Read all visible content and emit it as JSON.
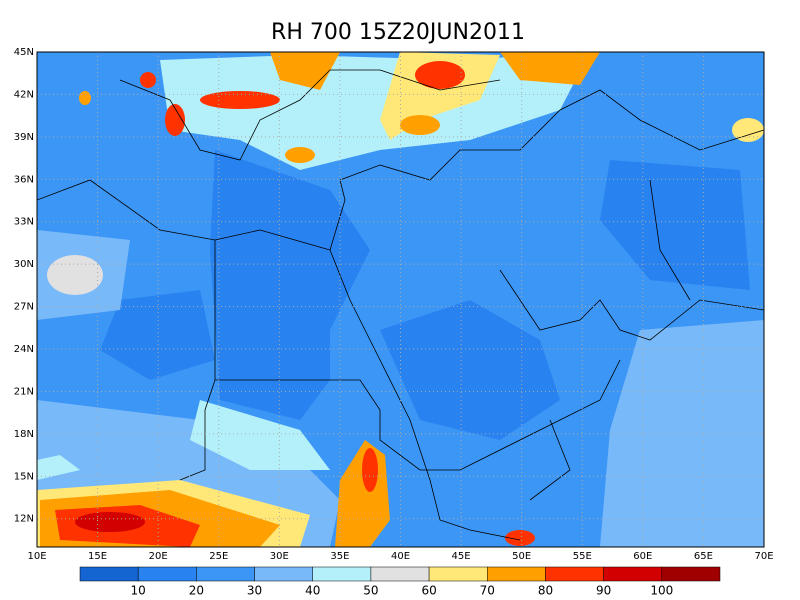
{
  "title": "RH 700 15Z20JUN2011",
  "lat_labels": [
    "45N",
    "42N",
    "39N",
    "36N",
    "33N",
    "30N",
    "27N",
    "24N",
    "21N",
    "18N",
    "15N",
    "12N"
  ],
  "lon_labels": [
    "10E",
    "15E",
    "20E",
    "25E",
    "30E",
    "35E",
    "40E",
    "45E",
    "50E",
    "55E",
    "60E",
    "65E",
    "70E"
  ],
  "colorbar": {
    "colors": [
      "#1464d2",
      "#2882f0",
      "#3c96f5",
      "#78b9fa",
      "#b4f0fa",
      "#e1e1e1",
      "#ffe878",
      "#ffa000",
      "#ff3200",
      "#d20000",
      "#a00000"
    ],
    "labels": [
      10,
      20,
      30,
      40,
      50,
      60,
      70,
      80,
      90,
      100
    ]
  }
}
